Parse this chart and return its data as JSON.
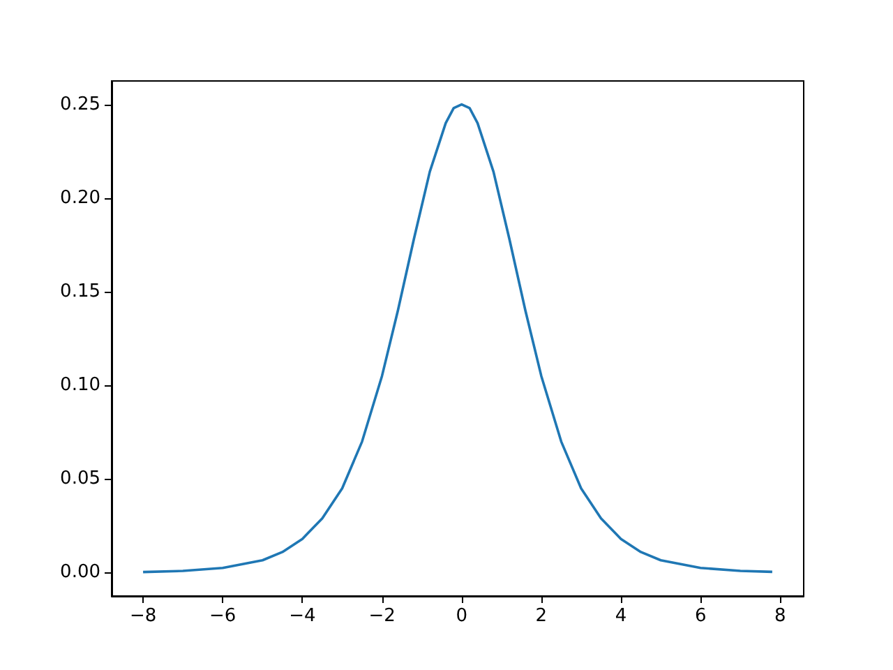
{
  "chart_data": {
    "type": "line",
    "x": [
      -8,
      -7,
      -6,
      -5,
      -4.5,
      -4,
      -3.5,
      -3,
      -2.5,
      -2,
      -1.6,
      -1.2,
      -0.8,
      -0.4,
      -0.2,
      0,
      0.2,
      0.4,
      0.8,
      1.2,
      1.6,
      2,
      2.5,
      3,
      3.5,
      4,
      4.5,
      5,
      6,
      7,
      7.8
    ],
    "series": [
      {
        "color": "#1f77b4",
        "values": [
          0.0003,
          0.0009,
          0.0025,
          0.0066,
          0.011,
          0.018,
          0.029,
          0.045,
          0.07,
          0.105,
          0.14,
          0.178,
          0.214,
          0.24,
          0.248,
          0.25,
          0.248,
          0.24,
          0.214,
          0.178,
          0.14,
          0.105,
          0.07,
          0.045,
          0.029,
          0.018,
          0.011,
          0.0066,
          0.0025,
          0.0009,
          0.0004
        ]
      }
    ],
    "xlim": [
      -8.79,
      8.59
    ],
    "ylim": [
      -0.0125,
      0.2625
    ],
    "xticks": [
      {
        "value": -8,
        "label": "−8"
      },
      {
        "value": -6,
        "label": "−6"
      },
      {
        "value": -4,
        "label": "−4"
      },
      {
        "value": -2,
        "label": "−2"
      },
      0,
      2,
      4,
      6,
      8
    ],
    "yticks": [
      {
        "value": 0,
        "label": "0.00"
      },
      {
        "value": 0.05,
        "label": "0.05"
      },
      {
        "value": 0.1,
        "label": "0.10"
      },
      {
        "value": 0.15,
        "label": "0.15"
      },
      {
        "value": 0.2,
        "label": "0.20"
      },
      {
        "value": 0.25,
        "label": "0.25"
      }
    ],
    "grid": false,
    "marker": "none",
    "line_style": "solid"
  }
}
